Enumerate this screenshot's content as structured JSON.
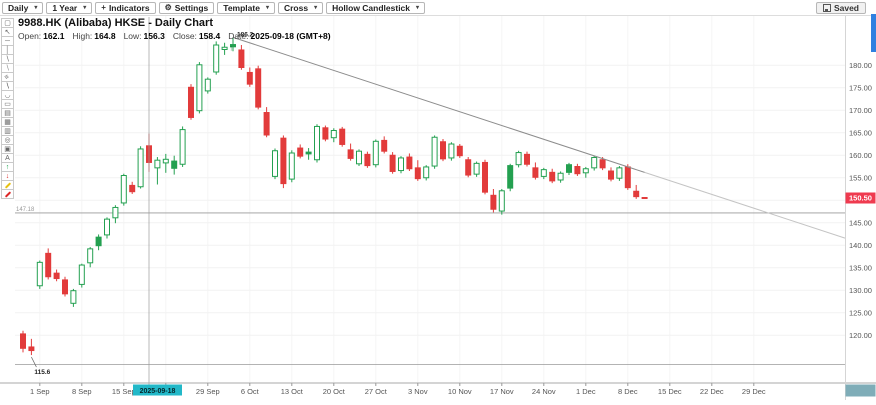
{
  "toolbar": {
    "buttons": [
      {
        "name": "interval-select",
        "label": "Daily",
        "icon": null,
        "caret": true
      },
      {
        "name": "range-select",
        "label": "1 Year",
        "icon": null,
        "caret": true
      },
      {
        "name": "indicators-button",
        "label": "Indicators",
        "icon": "plus",
        "caret": false
      },
      {
        "name": "settings-button",
        "label": "Settings",
        "icon": "gear",
        "caret": false
      },
      {
        "name": "template-select",
        "label": "Template",
        "icon": null,
        "caret": true
      },
      {
        "name": "cursor-mode-select",
        "label": "Cross",
        "icon": null,
        "caret": true
      },
      {
        "name": "chart-type-select",
        "label": "Hollow Candlestick",
        "icon": null,
        "caret": true
      }
    ],
    "saved_label": "Saved"
  },
  "header": {
    "title": "9988.HK (Alibaba) HKSE - Daily Chart",
    "ohlc": [
      {
        "label": "Open:",
        "value": "162.1"
      },
      {
        "label": "High:",
        "value": "164.8"
      },
      {
        "label": "Low:",
        "value": "156.3"
      },
      {
        "label": "Close:",
        "value": "158.4"
      },
      {
        "label": "Date:",
        "value": "2025-09-18 (GMT+8)"
      }
    ]
  },
  "tools": {
    "items": [
      {
        "name": "selection-tool",
        "glyph": "▢",
        "color": "#666"
      },
      {
        "name": "cursor-tool",
        "glyph": "↖",
        "color": "#666"
      },
      {
        "name": "horizontal-line-tool",
        "glyph": "─",
        "color": "#666"
      },
      {
        "name": "vertical-line-tool",
        "glyph": "│",
        "color": "#666"
      },
      {
        "name": "trend-line-tool",
        "glyph": "∖",
        "color": "#666"
      },
      {
        "name": "ray-tool",
        "glyph": "∖",
        "color": "#888"
      },
      {
        "name": "parallel-channel-tool",
        "glyph": "≡",
        "color": "#666",
        "rotate": true
      },
      {
        "name": "extended-line-tool",
        "glyph": "∖",
        "color": "#444"
      },
      {
        "name": "arc-tool",
        "glyph": "◡",
        "color": "#666"
      },
      {
        "name": "rectangle-tool",
        "glyph": "▭",
        "color": "#666"
      },
      {
        "name": "pattern-tool",
        "glyph": "▤",
        "color": "#666"
      },
      {
        "name": "grid-tool",
        "glyph": "▦",
        "color": "#666"
      },
      {
        "name": "image-tool",
        "glyph": "▥",
        "color": "#666"
      },
      {
        "name": "circle-tool",
        "glyph": "◎",
        "color": "#666"
      },
      {
        "name": "camera-tool",
        "glyph": "▣",
        "color": "#666"
      },
      {
        "name": "text-tool",
        "glyph": "A",
        "color": "#666"
      },
      {
        "name": "arrow-up-tool",
        "glyph": "↑",
        "color": "#18a34a",
        "bold": true
      },
      {
        "name": "arrow-down-tool",
        "glyph": "↓",
        "color": "#dc2626",
        "bold": true
      },
      {
        "name": "brush-yellow-tool",
        "glyph": "",
        "color": "#e7c112",
        "brush": true
      },
      {
        "name": "brush-red-tool",
        "glyph": "",
        "color": "#dc2626",
        "brush": true
      }
    ]
  },
  "chart_data": {
    "type": "hollow-candlestick",
    "title": "9988.HK (Alibaba) HKSE - Daily Chart",
    "timeframe": "Daily",
    "range": "1 Year",
    "ylim": [
      112,
      188
    ],
    "grid": true,
    "columns": [
      "open",
      "high",
      "low",
      "close",
      "style  g=hollow-up G=filled-up r=down d=dash"
    ],
    "candles": [
      [
        120.3,
        121.0,
        116.2,
        117.1,
        "r"
      ],
      [
        117.4,
        119.2,
        115.6,
        116.6,
        "r"
      ],
      [
        131.0,
        136.6,
        130.3,
        136.2,
        "g"
      ],
      [
        138.2,
        139.3,
        132.4,
        133.0,
        "r"
      ],
      [
        133.8,
        134.6,
        132.0,
        132.6,
        "r"
      ],
      [
        132.3,
        133.0,
        128.6,
        129.2,
        "r"
      ],
      [
        127.1,
        130.3,
        126.3,
        129.9,
        "g"
      ],
      [
        131.3,
        135.9,
        130.6,
        135.6,
        "g"
      ],
      [
        136.1,
        139.6,
        135.1,
        139.2,
        "g"
      ],
      [
        139.9,
        142.4,
        138.9,
        141.8,
        "G"
      ],
      [
        142.3,
        146.2,
        141.5,
        145.8,
        "g"
      ],
      [
        146.1,
        148.9,
        144.9,
        148.4,
        "g"
      ],
      [
        149.4,
        155.9,
        148.8,
        155.5,
        "g"
      ],
      [
        153.3,
        154.1,
        151.4,
        151.9,
        "r"
      ],
      [
        153.0,
        162.0,
        152.6,
        161.4,
        "g"
      ],
      [
        162.1,
        164.8,
        156.3,
        158.4,
        "r"
      ],
      [
        157.2,
        159.6,
        153.5,
        158.9,
        "g"
      ],
      [
        158.3,
        160.3,
        156.1,
        159.1,
        "g"
      ],
      [
        157.1,
        159.9,
        155.7,
        158.7,
        "G"
      ],
      [
        158.0,
        166.4,
        157.4,
        165.7,
        "g"
      ],
      [
        175.1,
        175.8,
        167.9,
        168.4,
        "r"
      ],
      [
        169.9,
        180.7,
        169.3,
        180.1,
        "g"
      ],
      [
        174.3,
        177.3,
        173.7,
        176.9,
        "g"
      ],
      [
        178.5,
        185.3,
        177.9,
        184.5,
        "g"
      ],
      [
        183.5,
        185.0,
        182.3,
        184.0,
        "g"
      ],
      [
        184.1,
        186.2,
        183.1,
        184.6,
        "G"
      ],
      [
        183.4,
        184.5,
        179.0,
        179.5,
        "r"
      ],
      [
        178.4,
        179.5,
        175.2,
        175.8,
        "r"
      ],
      [
        179.2,
        179.9,
        170.2,
        170.7,
        "r"
      ],
      [
        169.5,
        170.7,
        164.0,
        164.5,
        "r"
      ],
      [
        155.3,
        161.5,
        154.7,
        161.0,
        "g"
      ],
      [
        163.8,
        164.4,
        152.7,
        153.7,
        "r"
      ],
      [
        154.7,
        161.1,
        154.0,
        160.5,
        "g"
      ],
      [
        161.6,
        162.4,
        159.3,
        159.8,
        "r"
      ],
      [
        160.3,
        161.6,
        159.0,
        160.7,
        "G"
      ],
      [
        159.0,
        166.9,
        158.4,
        166.4,
        "g"
      ],
      [
        166.1,
        166.6,
        163.1,
        163.6,
        "r"
      ],
      [
        163.9,
        166.0,
        162.9,
        165.5,
        "g"
      ],
      [
        165.8,
        166.3,
        161.9,
        162.4,
        "r"
      ],
      [
        161.2,
        162.6,
        158.8,
        159.3,
        "r"
      ],
      [
        158.1,
        161.3,
        157.6,
        160.9,
        "g"
      ],
      [
        160.2,
        160.8,
        157.2,
        157.7,
        "r"
      ],
      [
        157.9,
        163.5,
        157.3,
        163.1,
        "g"
      ],
      [
        163.3,
        164.2,
        160.4,
        160.9,
        "r"
      ],
      [
        160.0,
        160.7,
        155.9,
        156.4,
        "r"
      ],
      [
        156.6,
        159.8,
        156.0,
        159.4,
        "g"
      ],
      [
        159.6,
        160.4,
        156.5,
        157.0,
        "r"
      ],
      [
        157.2,
        158.9,
        154.3,
        154.8,
        "r"
      ],
      [
        155.0,
        157.8,
        154.4,
        157.4,
        "g"
      ],
      [
        157.6,
        164.4,
        157.0,
        164.0,
        "g"
      ],
      [
        163.0,
        163.6,
        158.7,
        159.2,
        "r"
      ],
      [
        159.4,
        162.9,
        158.8,
        162.5,
        "g"
      ],
      [
        162.0,
        162.5,
        159.4,
        159.9,
        "r"
      ],
      [
        159.0,
        159.6,
        155.1,
        155.6,
        "r"
      ],
      [
        155.8,
        158.6,
        155.2,
        158.2,
        "g"
      ],
      [
        158.4,
        159.0,
        151.3,
        151.8,
        "r"
      ],
      [
        151.1,
        152.5,
        147.3,
        148.0,
        "r"
      ],
      [
        147.6,
        152.5,
        146.8,
        152.1,
        "g"
      ],
      [
        152.7,
        158.1,
        152.0,
        157.7,
        "G"
      ],
      [
        157.9,
        161.0,
        157.3,
        160.6,
        "g"
      ],
      [
        160.2,
        160.8,
        157.5,
        158.0,
        "r"
      ],
      [
        157.2,
        158.4,
        154.6,
        155.1,
        "r"
      ],
      [
        155.3,
        157.2,
        154.7,
        156.8,
        "g"
      ],
      [
        156.2,
        157.0,
        153.8,
        154.3,
        "r"
      ],
      [
        154.5,
        156.4,
        153.9,
        156.0,
        "g"
      ],
      [
        156.2,
        158.3,
        155.6,
        157.9,
        "G"
      ],
      [
        157.5,
        158.1,
        155.4,
        155.9,
        "r"
      ],
      [
        156.1,
        157.4,
        155.0,
        157.0,
        "g"
      ],
      [
        157.2,
        159.9,
        156.6,
        159.5,
        "g"
      ],
      [
        159.0,
        159.6,
        156.7,
        157.2,
        "r"
      ],
      [
        156.5,
        157.3,
        154.2,
        154.7,
        "r"
      ],
      [
        154.9,
        157.6,
        154.3,
        157.2,
        "g"
      ],
      [
        157.4,
        158.0,
        152.3,
        152.8,
        "r"
      ],
      [
        152.0,
        153.4,
        150.3,
        150.8,
        "r"
      ],
      [
        150.5,
        150.9,
        150.1,
        150.5,
        "d"
      ]
    ],
    "x_ticks": [
      {
        "label": "1 Sep",
        "day": 2
      },
      {
        "label": "8 Sep",
        "day": 7
      },
      {
        "label": "15 Sep",
        "day": 12
      },
      {
        "label": "22 Sep",
        "day": 17
      },
      {
        "label": "29 Sep",
        "day": 22
      },
      {
        "label": "6 Oct",
        "day": 27
      },
      {
        "label": "13 Oct",
        "day": 32
      },
      {
        "label": "20 Oct",
        "day": 37
      },
      {
        "label": "27 Oct",
        "day": 42
      },
      {
        "label": "3 Nov",
        "day": 47
      },
      {
        "label": "10 Nov",
        "day": 52
      },
      {
        "label": "17 Nov",
        "day": 57
      },
      {
        "label": "24 Nov",
        "day": 62
      },
      {
        "label": "1 Dec",
        "day": 67
      },
      {
        "label": "8 Dec",
        "day": 72
      },
      {
        "label": "15 Dec",
        "day": 77
      },
      {
        "label": "22 Dec",
        "day": 82
      },
      {
        "label": "29 Dec",
        "day": 87
      }
    ],
    "y_ticks": [
      {
        "label": "180.00",
        "price": 180
      },
      {
        "label": "175.00",
        "price": 175
      },
      {
        "label": "170.00",
        "price": 170
      },
      {
        "label": "165.00",
        "price": 165
      },
      {
        "label": "160.00",
        "price": 160
      },
      {
        "label": "155.00",
        "price": 155
      },
      {
        "label": "145.00",
        "price": 145
      },
      {
        "label": "140.00",
        "price": 140
      },
      {
        "label": "135.00",
        "price": 135
      },
      {
        "label": "130.00",
        "price": 130
      },
      {
        "label": "125.00",
        "price": 125
      },
      {
        "label": "120.00",
        "price": 120
      }
    ],
    "y_grid": [
      180,
      175,
      170,
      165,
      160,
      155,
      150,
      145,
      140,
      135,
      130,
      125,
      120
    ],
    "annotations": {
      "high": {
        "text": "186.2",
        "day": 25,
        "price": 186.2
      },
      "low": {
        "text": "115.6",
        "day": 1,
        "price": 115.6
      },
      "hlines": [
        {
          "price": 147.18,
          "label": "147.18"
        },
        {
          "price": 113.5,
          "label": ""
        }
      ],
      "trendline": {
        "d1": 25,
        "p1": 186.2,
        "d2": 98,
        "p2": 141.5
      },
      "crosshair": {
        "day": 15,
        "date_label": "2025-09-18"
      },
      "last_price": {
        "label": "150.50",
        "price": 150.5
      }
    },
    "colors": {
      "up": "#23a050",
      "down": "#e23b3b",
      "last_price_bg": "#ef3a4f",
      "crosshair_label_bg": "#22b8c8",
      "trendline": "#8c8c8c",
      "trendline_faded": "#c4c4c4",
      "hline": "#9a9a9a",
      "corner": "#7fadb8",
      "scrollbar": "#2f80e0"
    }
  }
}
